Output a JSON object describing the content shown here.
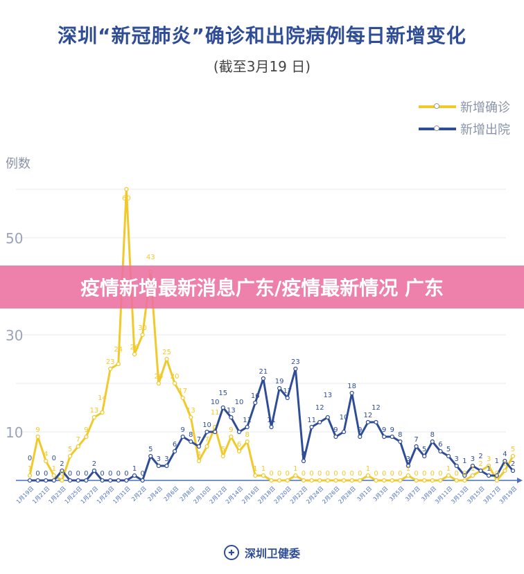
{
  "title": "深圳“新冠肺炎”确诊和出院病例每日新增变化",
  "subtitle": "(截至3月19 日)",
  "banner": "疫情新增最新消息广东/疫情最新情况 广东",
  "footer": "深圳卫健委",
  "chart_data": {
    "type": "line",
    "title": "深圳“新冠肺炎”确诊和出院病例每日新增变化",
    "ylabel": "例数",
    "ylim": [
      0,
      63
    ],
    "yticks": [
      10,
      30,
      50
    ],
    "grid": true,
    "legend_position": "top-right",
    "x": [
      "1月19日",
      "1月20日",
      "1月21日",
      "1月22日",
      "1月23日",
      "1月24日",
      "1月25日",
      "1月26日",
      "1月27日",
      "1月28日",
      "1月29日",
      "1月30日",
      "1月31日",
      "2月1日",
      "2月2日",
      "2月3日",
      "2月4日",
      "2月5日",
      "2月6日",
      "2月7日",
      "2月8日",
      "2月9日",
      "2月10日",
      "2月11日",
      "2月12日",
      "2月13日",
      "2月14日",
      "2月15日",
      "2月16日",
      "2月17日",
      "2月18日",
      "2月19日",
      "2月20日",
      "2月21日",
      "2月22日",
      "2月23日",
      "2月24日",
      "2月25日",
      "2月26日",
      "2月27日",
      "2月28日",
      "2月29日",
      "3月1日",
      "3月2日",
      "3月3日",
      "3月4日",
      "3月5日",
      "3月6日",
      "3月7日",
      "3月8日",
      "3月9日",
      "3月10日",
      "3月11日",
      "3月12日",
      "3月13日",
      "3月14日",
      "3月15日",
      "3月16日",
      "3月17日",
      "3月18日",
      "3月19日"
    ],
    "series": [
      {
        "name": "新增确诊",
        "color": "#f1c92a",
        "values": [
          1,
          9,
          4,
          1,
          0,
          5,
          7,
          9,
          13,
          14,
          23,
          24,
          60,
          26,
          30,
          43,
          20,
          25,
          20,
          17,
          13,
          4,
          7,
          11,
          5,
          9,
          6,
          8,
          1,
          1,
          0,
          0,
          0,
          1,
          0,
          0,
          0,
          0,
          0,
          0,
          0,
          0,
          1,
          0,
          0,
          0,
          0,
          1,
          0,
          0,
          0,
          0,
          1,
          0,
          0,
          1,
          2,
          3,
          0,
          2,
          5
        ]
      },
      {
        "name": "新增出院",
        "color": "#2f4d96",
        "values": [
          0,
          0,
          0,
          0,
          2,
          0,
          0,
          0,
          2,
          0,
          0,
          0,
          0,
          1,
          0,
          5,
          3,
          3,
          6,
          9,
          8,
          7,
          10,
          10,
          15,
          13,
          10,
          11,
          16,
          21,
          11,
          19,
          17,
          23,
          4,
          11,
          12,
          13,
          9,
          10,
          18,
          9,
          12,
          12,
          9,
          9,
          8,
          3,
          7,
          5,
          8,
          6,
          5,
          3,
          1,
          3,
          2,
          1,
          1,
          4,
          2
        ]
      }
    ]
  }
}
